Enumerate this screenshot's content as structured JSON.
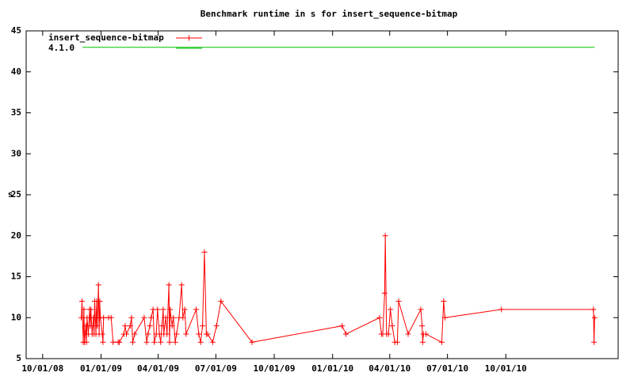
{
  "chart_data": {
    "type": "line",
    "title": "Benchmark runtime in s for insert_sequence-bitmap",
    "y_label": "s",
    "legend": "top-left",
    "grid": false,
    "xlim": [
      "2008-09-05",
      "2011-03-27"
    ],
    "xticks": [
      {
        "value": "2008-10-01",
        "label": "10/01/08"
      },
      {
        "value": "2009-01-01",
        "label": "01/01/09"
      },
      {
        "value": "2009-04-01",
        "label": "04/01/09"
      },
      {
        "value": "2009-07-01",
        "label": "07/01/09"
      },
      {
        "value": "2009-10-01",
        "label": "10/01/09"
      },
      {
        "value": "2010-01-01",
        "label": "01/01/10"
      },
      {
        "value": "2010-04-01",
        "label": "04/01/10"
      },
      {
        "value": "2010-07-01",
        "label": "07/01/10"
      },
      {
        "value": "2010-10-01",
        "label": "10/01/10"
      }
    ],
    "ylim": [
      5,
      45
    ],
    "yticks": [
      5,
      10,
      15,
      20,
      25,
      30,
      35,
      40,
      45
    ],
    "series": [
      {
        "name": "insert_sequence-bitmap",
        "color": "#ff0000",
        "marker": "plus",
        "x": [
          "2008-12-01",
          "2008-12-02",
          "2008-12-04",
          "2008-12-05",
          "2008-12-06",
          "2008-12-08",
          "2008-12-09",
          "2008-12-10",
          "2008-12-12",
          "2008-12-14",
          "2008-12-15",
          "2008-12-16",
          "2008-12-18",
          "2008-12-20",
          "2008-12-21",
          "2008-12-22",
          "2008-12-24",
          "2008-12-25",
          "2008-12-26",
          "2008-12-28",
          "2008-12-29",
          "2008-12-30",
          "2008-12-31",
          "2009-01-03",
          "2009-01-04",
          "2009-01-05",
          "2009-01-13",
          "2009-01-17",
          "2009-01-20",
          "2009-01-28",
          "2009-01-30",
          "2009-02-06",
          "2009-02-08",
          "2009-02-10",
          "2009-02-16",
          "2009-02-18",
          "2009-02-20",
          "2009-02-23",
          "2009-03-10",
          "2009-03-14",
          "2009-03-16",
          "2009-03-19",
          "2009-03-21",
          "2009-03-24",
          "2009-03-26",
          "2009-03-29",
          "2009-03-31",
          "2009-04-03",
          "2009-04-05",
          "2009-04-07",
          "2009-04-09",
          "2009-04-10",
          "2009-04-13",
          "2009-04-15",
          "2009-04-18",
          "2009-04-19",
          "2009-04-20",
          "2009-04-23",
          "2009-04-25",
          "2009-04-28",
          "2009-04-30",
          "2009-05-04",
          "2009-05-08",
          "2009-05-10",
          "2009-05-13",
          "2009-05-15",
          "2009-05-31",
          "2009-06-04",
          "2009-06-07",
          "2009-06-10",
          "2009-06-13",
          "2009-06-16",
          "2009-06-18",
          "2009-06-26",
          "2009-07-02",
          "2009-07-09",
          "2009-08-27",
          "2010-01-16",
          "2010-01-22",
          "2010-03-16",
          "2010-03-19",
          "2010-03-21",
          "2010-03-24",
          "2010-03-25",
          "2010-03-27",
          "2010-03-30",
          "2010-04-02",
          "2010-04-05",
          "2010-04-09",
          "2010-04-13",
          "2010-04-15",
          "2010-04-30",
          "2010-05-20",
          "2010-05-22",
          "2010-05-23",
          "2010-05-24",
          "2010-05-28",
          "2010-06-22",
          "2010-06-25",
          "2010-06-27",
          "2010-09-24",
          "2011-02-16",
          "2011-02-17",
          "2011-02-18"
        ],
        "values": [
          10,
          12,
          7,
          11,
          7,
          9,
          7,
          10,
          8,
          11,
          9,
          11,
          8,
          10,
          8,
          12,
          8,
          12,
          9,
          14,
          8,
          12,
          10,
          8,
          7,
          10,
          10,
          10,
          7,
          7,
          7,
          8,
          9,
          8,
          9,
          10,
          7,
          8,
          10,
          7,
          8,
          9,
          10,
          11,
          7,
          8,
          11,
          8,
          7,
          9,
          11,
          8,
          10,
          8,
          14,
          7,
          11,
          9,
          10,
          7,
          8,
          10,
          14,
          10,
          11,
          8,
          11,
          8,
          7,
          9,
          18,
          8,
          8,
          7,
          9,
          12,
          7,
          9,
          8,
          10,
          8,
          8,
          13,
          20,
          8,
          8,
          11,
          9,
          7,
          7,
          12,
          8,
          11,
          9,
          7,
          8,
          8,
          7,
          12,
          10,
          11,
          11,
          7,
          10
        ]
      },
      {
        "name": "4.1.0",
        "color": "#00c000",
        "marker": "none",
        "x": [
          "2008-12-03",
          "2011-02-18"
        ],
        "values": [
          43,
          43
        ]
      }
    ]
  }
}
